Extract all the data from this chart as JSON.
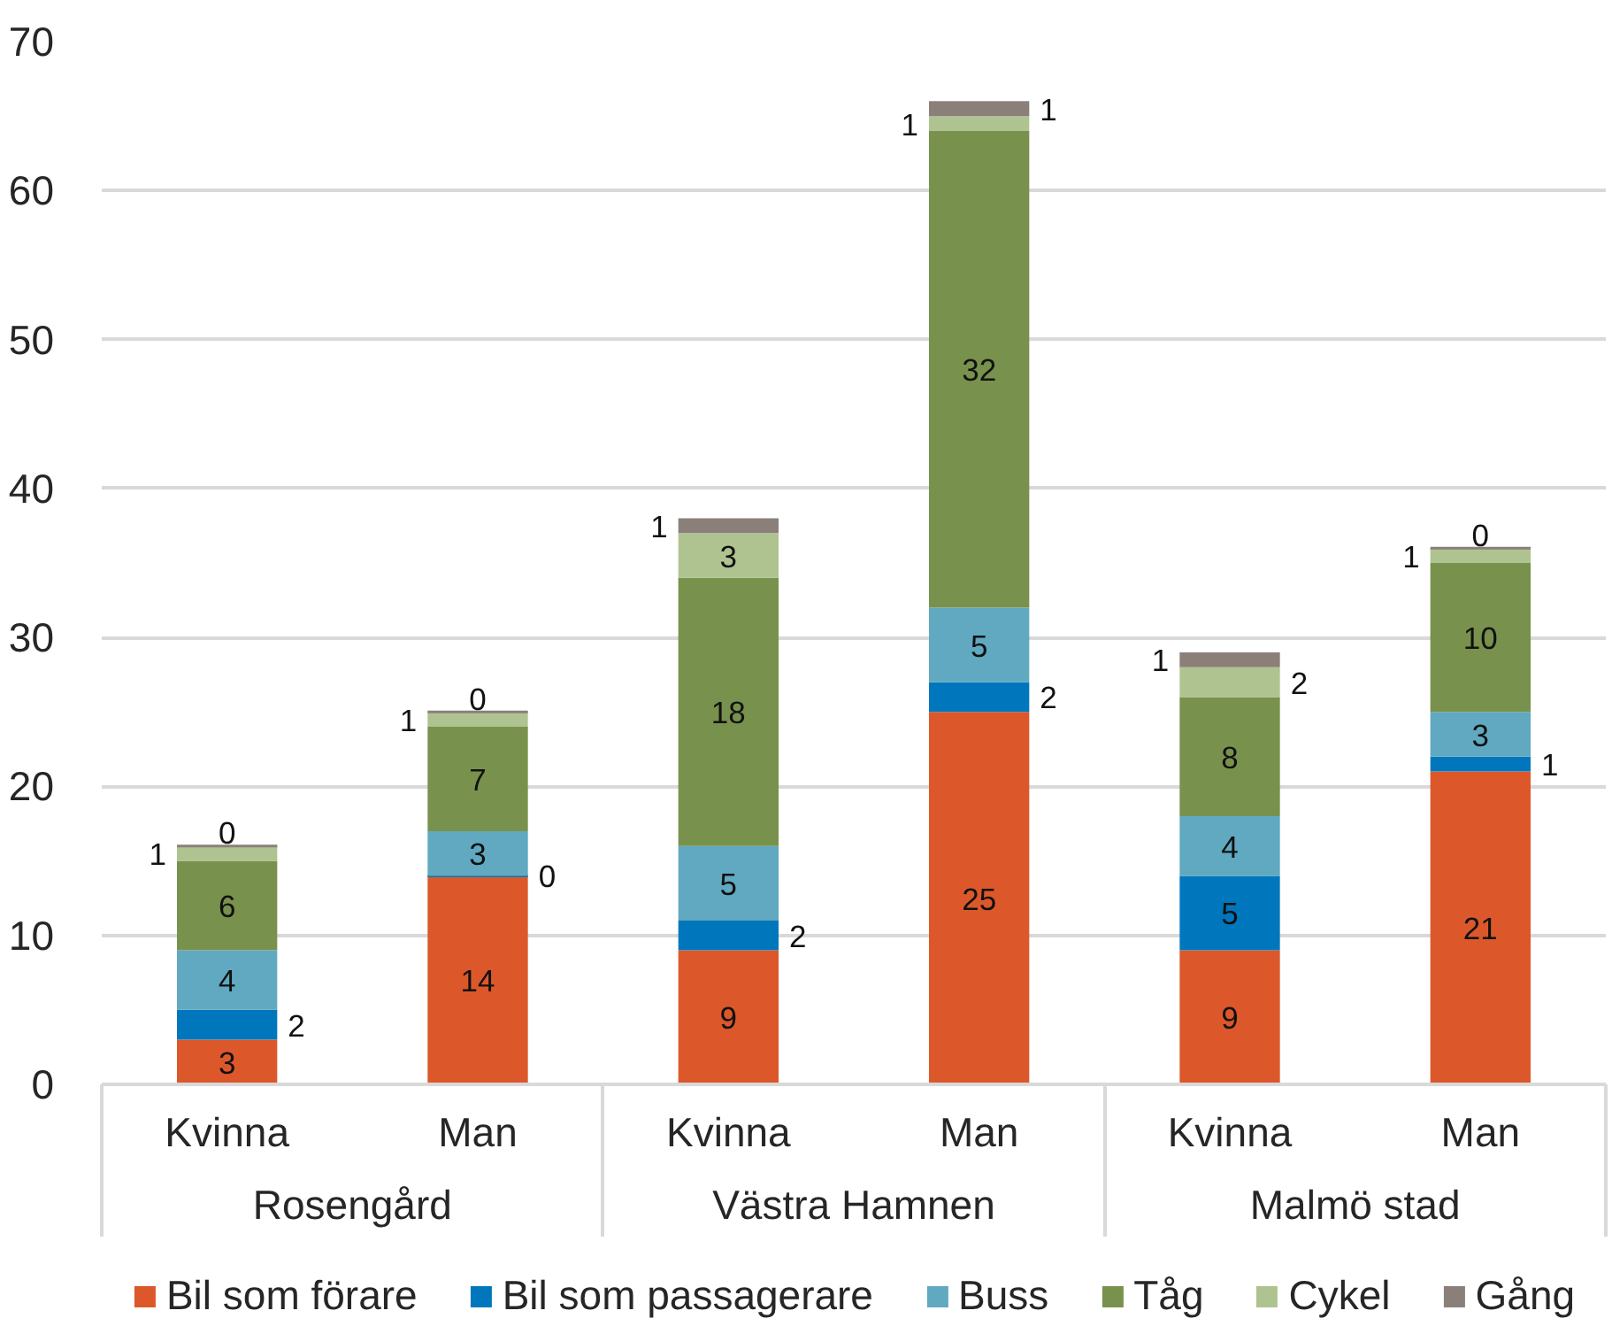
{
  "chart_data": {
    "type": "bar",
    "stacked": true,
    "categories": [
      "Kvinna",
      "Man",
      "Kvinna",
      "Man",
      "Kvinna",
      "Man"
    ],
    "annotations": [
      "Rosengård",
      "Västra Hamnen",
      "Malmö stad"
    ],
    "series": [
      {
        "name": "Bil som förare",
        "color": "#dc582a",
        "values": [
          3,
          14,
          9,
          25,
          9,
          21
        ]
      },
      {
        "name": "Bil som passagerare",
        "color": "#0077bd",
        "values": [
          2,
          0,
          2,
          2,
          5,
          1
        ]
      },
      {
        "name": "Buss",
        "color": "#60a9c1",
        "values": [
          4,
          3,
          5,
          5,
          4,
          3
        ]
      },
      {
        "name": "Tåg",
        "color": "#78914c",
        "values": [
          6,
          7,
          18,
          32,
          8,
          10
        ]
      },
      {
        "name": "Cykel",
        "color": "#afc390",
        "values": [
          1,
          1,
          3,
          1,
          2,
          1
        ]
      },
      {
        "name": "Gång",
        "color": "#8b8079",
        "values": [
          0,
          0,
          1,
          1,
          1,
          0
        ]
      }
    ],
    "ylim": [
      0,
      70
    ],
    "yticks": [
      0,
      10,
      20,
      30,
      40,
      50,
      60,
      70
    ],
    "grid": "y",
    "legend": "bottom",
    "data_labels": true
  }
}
